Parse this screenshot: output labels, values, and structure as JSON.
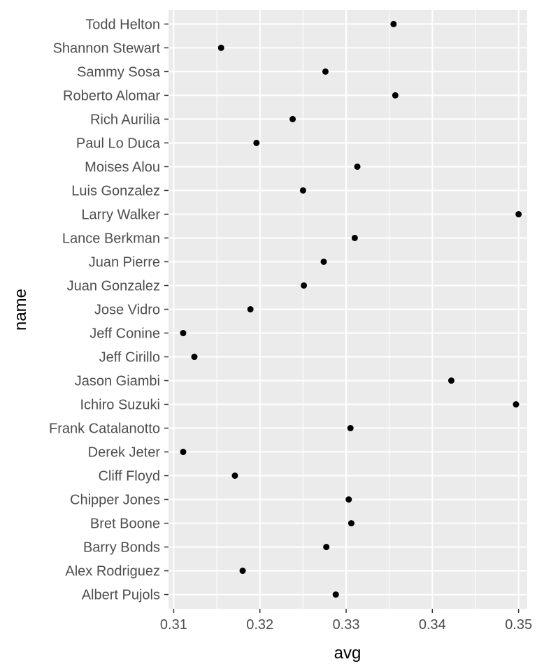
{
  "chart_data": {
    "type": "scatter",
    "xlabel": "avg",
    "ylabel": "name",
    "xlim": [
      0.3094,
      0.351
    ],
    "x_ticks": [
      0.31,
      0.32,
      0.33,
      0.34,
      0.35
    ],
    "x_tick_labels": [
      "0.31",
      "0.32",
      "0.33",
      "0.34",
      "0.35"
    ],
    "grid": true,
    "panel_background": "#ebebeb",
    "grid_color": "#ffffff",
    "point_color": "#000000",
    "points": [
      {
        "name": "Todd Helton",
        "avg": 0.3355
      },
      {
        "name": "Shannon Stewart",
        "avg": 0.3155
      },
      {
        "name": "Sammy Sosa",
        "avg": 0.3276
      },
      {
        "name": "Roberto Alomar",
        "avg": 0.3357
      },
      {
        "name": "Rich Aurilia",
        "avg": 0.3238
      },
      {
        "name": "Paul Lo Duca",
        "avg": 0.3196
      },
      {
        "name": "Moises Alou",
        "avg": 0.3313
      },
      {
        "name": "Luis Gonzalez",
        "avg": 0.325
      },
      {
        "name": "Larry Walker",
        "avg": 0.35
      },
      {
        "name": "Lance Berkman",
        "avg": 0.331
      },
      {
        "name": "Juan Pierre",
        "avg": 0.3274
      },
      {
        "name": "Juan Gonzalez",
        "avg": 0.3251
      },
      {
        "name": "Jose Vidro",
        "avg": 0.3189
      },
      {
        "name": "Jeff Conine",
        "avg": 0.3111
      },
      {
        "name": "Jeff Cirillo",
        "avg": 0.3124
      },
      {
        "name": "Jason Giambi",
        "avg": 0.3422
      },
      {
        "name": "Ichiro Suzuki",
        "avg": 0.3497
      },
      {
        "name": "Frank Catalanotto",
        "avg": 0.3305
      },
      {
        "name": "Derek Jeter",
        "avg": 0.3111
      },
      {
        "name": "Cliff Floyd",
        "avg": 0.3171
      },
      {
        "name": "Chipper Jones",
        "avg": 0.3303
      },
      {
        "name": "Bret Boone",
        "avg": 0.3306
      },
      {
        "name": "Barry Bonds",
        "avg": 0.3277
      },
      {
        "name": "Alex Rodriguez",
        "avg": 0.318
      },
      {
        "name": "Albert Pujols",
        "avg": 0.3288
      }
    ]
  }
}
